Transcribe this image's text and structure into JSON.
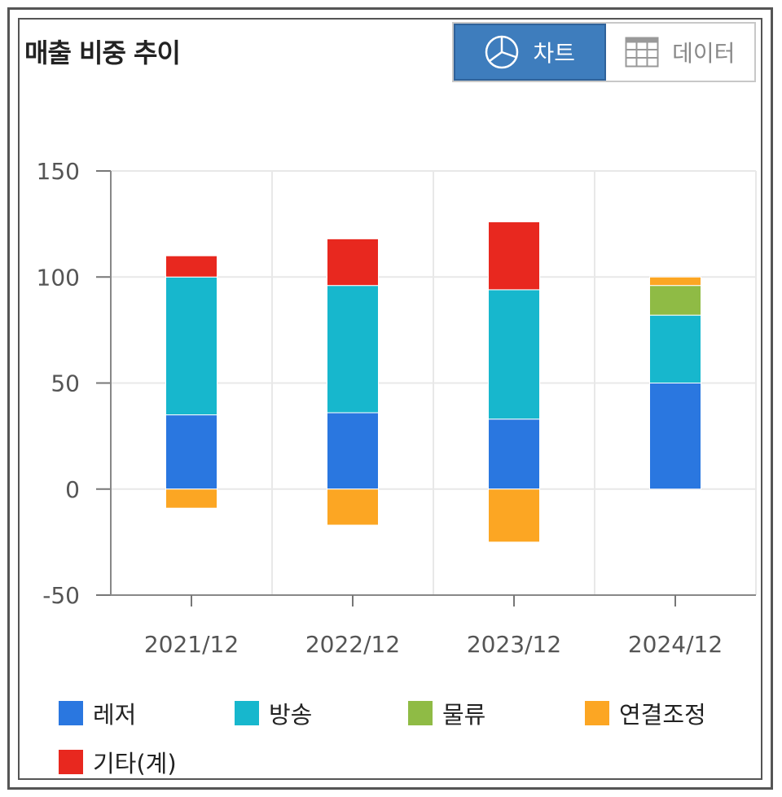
{
  "header": {
    "title": "매출 비중 추이"
  },
  "toggle": {
    "chart_label": "차트",
    "data_label": "데이터"
  },
  "colors": {
    "레저": "#2a77e0",
    "방송": "#17b7cd",
    "물류": "#8fbb45",
    "연결조정": "#fca623",
    "기타(계)": "#e8281f",
    "active_button": "#3e7dbd"
  },
  "chart_data": {
    "type": "bar",
    "stacked": true,
    "categories": [
      "2021/12",
      "2022/12",
      "2023/12",
      "2024/12"
    ],
    "ylim": [
      -50,
      150
    ],
    "yticks": [
      -50,
      0,
      50,
      100,
      150
    ],
    "grid": true,
    "legend_position": "bottom",
    "series": [
      {
        "name": "레저",
        "values": [
          35,
          36,
          33,
          50
        ]
      },
      {
        "name": "방송",
        "values": [
          65,
          60,
          61,
          32
        ]
      },
      {
        "name": "물류",
        "values": [
          0,
          0,
          0,
          14
        ]
      },
      {
        "name": "연결조정",
        "values": [
          -9,
          -17,
          -25,
          4
        ]
      },
      {
        "name": "기타(계)",
        "values": [
          10,
          22,
          32,
          0
        ]
      }
    ]
  }
}
